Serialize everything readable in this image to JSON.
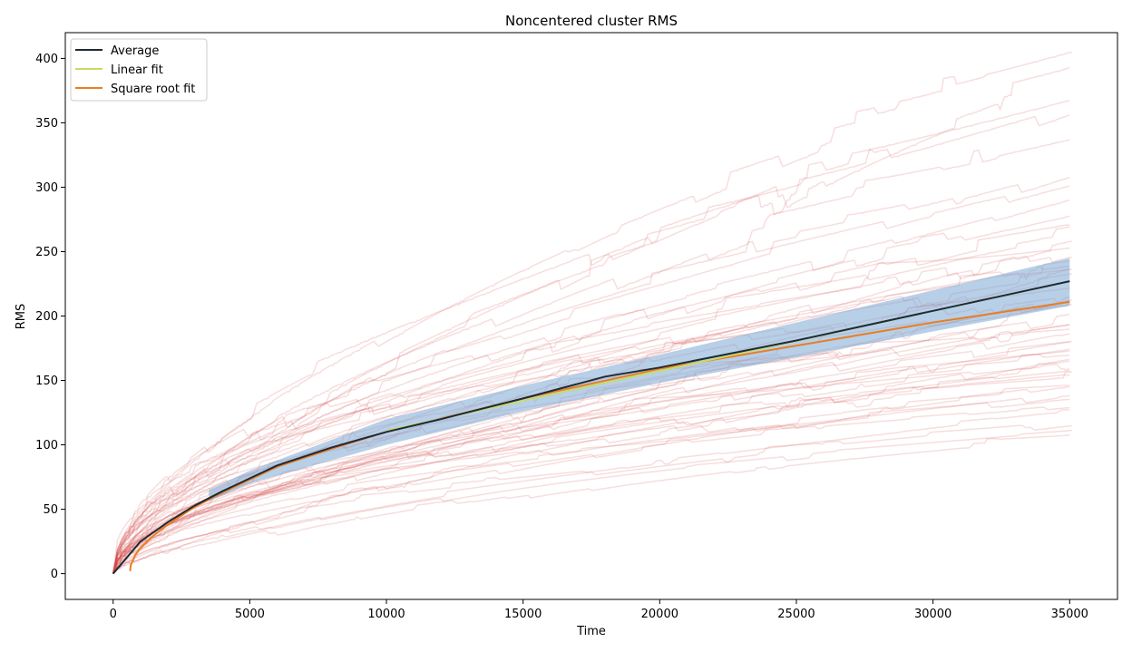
{
  "chart_data": {
    "type": "line",
    "title": "Noncentered cluster RMS",
    "xlabel": "Time",
    "ylabel": "RMS",
    "xlim": [
      -1750,
      36750
    ],
    "ylim": [
      -20,
      420
    ],
    "xticks": [
      0,
      5000,
      10000,
      15000,
      20000,
      25000,
      30000,
      35000
    ],
    "yticks": [
      0,
      50,
      100,
      150,
      200,
      250,
      300,
      350,
      400
    ],
    "grid": false,
    "legend_position": "top-left",
    "series": [
      {
        "name": "Average",
        "color": "#1f2a36",
        "x": [
          0,
          1000,
          2000,
          3000,
          4000,
          5000,
          6000,
          8000,
          10000,
          12000,
          15000,
          18000,
          20000,
          25000,
          30000,
          35000
        ],
        "y": [
          0,
          25,
          40,
          53,
          64,
          74,
          84,
          98,
          110,
          120,
          136,
          153,
          160,
          181,
          204,
          227
        ]
      },
      {
        "name": "Linear fit",
        "color": "#c8dc64",
        "x": [
          10000,
          35000
        ],
        "y": [
          111,
          227
        ]
      },
      {
        "name": "Square root fit",
        "color": "#e87e22",
        "x": [
          620,
          650,
          700,
          800,
          1000,
          1500,
          2000,
          3000,
          4000,
          6000,
          8000,
          10000,
          15000,
          20000,
          25000,
          30000,
          35000
        ],
        "y": [
          2,
          7,
          9,
          14,
          20,
          30,
          38,
          52,
          63,
          83,
          97,
          110,
          136,
          159,
          177,
          195,
          211
        ]
      }
    ],
    "band": {
      "color": "#7ba8d4",
      "x": [
        3500,
        5000,
        10000,
        15000,
        20000,
        25000,
        30000,
        35000
      ],
      "upper": [
        65,
        80,
        120,
        146,
        170,
        195,
        220,
        245
      ],
      "lower": [
        56,
        70,
        100,
        126,
        148,
        168,
        188,
        208
      ]
    },
    "background_runs": {
      "color": "#d0484a",
      "count": 50,
      "final_values_at_35000": [
        399,
        384,
        365,
        361,
        334,
        312,
        305,
        292,
        280,
        270,
        262,
        258,
        253,
        248,
        244,
        240,
        236,
        232,
        228,
        224,
        220,
        216,
        212,
        208,
        204,
        200,
        196,
        193,
        190,
        186,
        182,
        178,
        175,
        172,
        169,
        166,
        163,
        160,
        157,
        154,
        150,
        146,
        143,
        140,
        137,
        130,
        125,
        117,
        110,
        105
      ]
    }
  }
}
